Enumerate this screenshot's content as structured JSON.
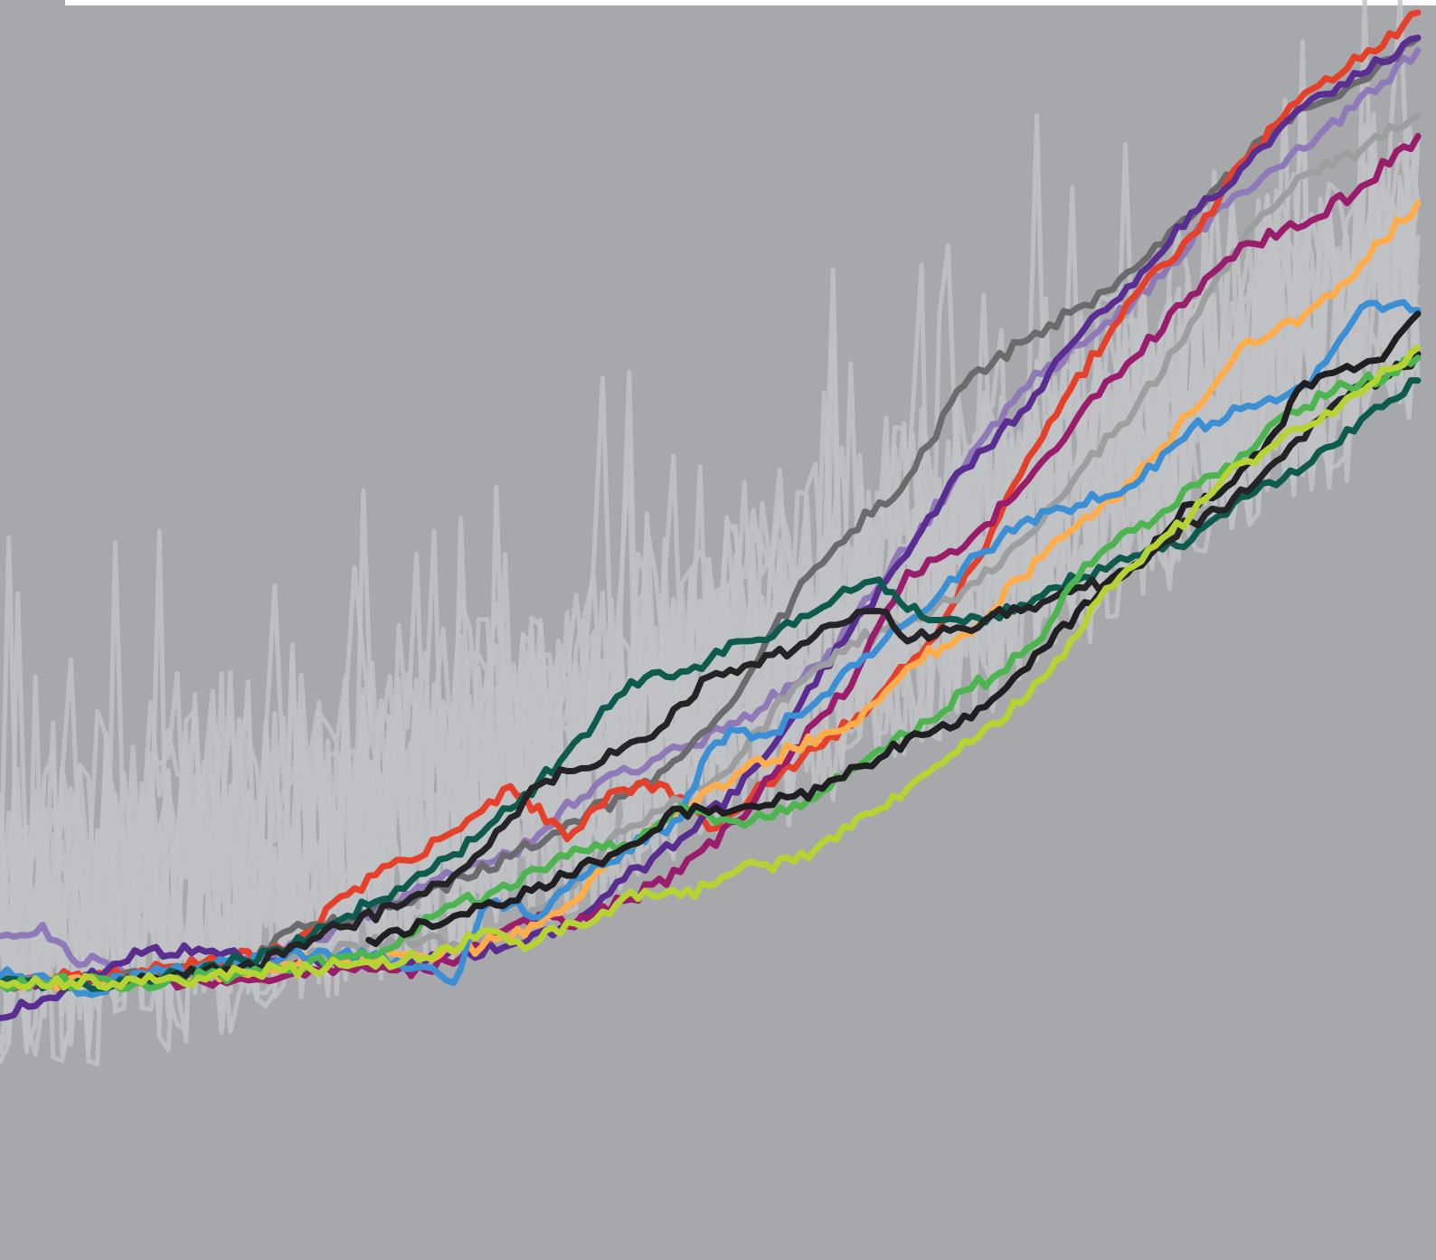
{
  "chart_data": {
    "type": "line",
    "title": "",
    "xlabel": "",
    "ylabel": "",
    "xlim": [
      0,
      100
    ],
    "ylim": [
      0,
      100
    ],
    "grid": false,
    "legend": "none",
    "background": "#a7a8ab",
    "noise": {
      "color": "#bfc2c6",
      "count": 14,
      "points": 161,
      "baseline": {
        "x": [
          0,
          10,
          20,
          30,
          40,
          50,
          60,
          70,
          80,
          90,
          100
        ],
        "y": [
          28,
          30,
          33,
          37,
          41,
          46,
          51,
          58,
          65,
          72,
          80
        ]
      },
      "spread": 22,
      "seed": 1337
    },
    "series": [
      {
        "color": "#8f79b8",
        "x": [
          0,
          3,
          5,
          7,
          10,
          15,
          20,
          25,
          32,
          36,
          42,
          48,
          52,
          58,
          62,
          68,
          72,
          76,
          82,
          86,
          92,
          100
        ],
        "y": [
          25.7,
          26.6,
          24.0,
          23.8,
          22.6,
          23.1,
          24.5,
          26.9,
          30.5,
          32.2,
          37.7,
          40.6,
          42.6,
          47.3,
          53.5,
          62.9,
          69.0,
          72.6,
          78.1,
          83.6,
          88.2,
          96.0
        ]
      },
      {
        "color": "#6b6b6d",
        "x": [
          0,
          8,
          12,
          18,
          20,
          25,
          30,
          36,
          40,
          44,
          47,
          49,
          52,
          56,
          60,
          64,
          68,
          72,
          78,
          82,
          86,
          90,
          94,
          97,
          100
        ],
        "y": [
          22.0,
          22.2,
          22.8,
          23.8,
          26.0,
          27.1,
          29.1,
          32.0,
          34.7,
          36.8,
          39.0,
          41.3,
          44.8,
          52.6,
          57.8,
          62.0,
          69.4,
          72.8,
          76.9,
          80.6,
          85.3,
          90.0,
          92.2,
          94.5,
          97.0
        ]
      },
      {
        "color": "#e5402a",
        "x": [
          0,
          10,
          20,
          25,
          32,
          36,
          40,
          43,
          47,
          50,
          54,
          58,
          62,
          66,
          70,
          74,
          80,
          84,
          88,
          92,
          96,
          100
        ],
        "y": [
          22.0,
          23.0,
          24.5,
          29.5,
          34.0,
          37.6,
          33.4,
          37.1,
          37.6,
          34.2,
          37.8,
          40.8,
          44.8,
          49.5,
          58.0,
          66.5,
          76.5,
          81.3,
          87.5,
          92.6,
          95.3,
          99.0
        ]
      },
      {
        "color": "#5a2e91",
        "x": [
          0,
          3,
          6,
          10,
          14,
          20,
          25,
          30,
          33,
          36,
          40,
          44,
          48,
          52,
          56,
          60,
          64,
          68,
          72,
          76,
          80,
          84,
          88,
          92,
          96,
          100
        ],
        "y": [
          19.2,
          20.7,
          22.3,
          24.3,
          24.7,
          23.5,
          23.8,
          23.7,
          24.4,
          25.0,
          26.6,
          30.2,
          33.4,
          37.1,
          43.2,
          50.0,
          56.0,
          62.8,
          67.3,
          73.2,
          77.4,
          83.1,
          87.1,
          91.6,
          94.1,
          97.0
        ]
      },
      {
        "color": "#9d9e9f",
        "x": [
          0,
          10,
          20,
          25,
          30,
          33,
          36,
          40,
          44,
          48,
          52,
          56,
          60,
          64,
          68,
          72,
          76,
          80,
          84,
          88,
          92,
          96,
          100
        ],
        "y": [
          22.0,
          22.0,
          23.5,
          25.0,
          25.5,
          25.0,
          26.1,
          29.6,
          34.0,
          36.4,
          39.8,
          45.5,
          49.0,
          50.5,
          53.2,
          57.0,
          62.4,
          67.4,
          74.4,
          81.7,
          86.1,
          88.1,
          90.8
        ]
      },
      {
        "color": "#9a1d6b",
        "x": [
          0,
          10,
          20,
          25,
          30,
          34,
          38,
          40,
          42,
          44,
          48,
          52,
          56,
          60,
          64,
          68,
          72,
          76,
          80,
          84,
          88,
          92,
          96,
          100
        ],
        "y": [
          22.0,
          22.0,
          22.5,
          23.0,
          23.0,
          24.8,
          27.4,
          26.5,
          27.5,
          28.5,
          30.8,
          34.8,
          40.6,
          45.5,
          54.6,
          56.6,
          61.3,
          66.9,
          71.6,
          76.6,
          80.7,
          82.1,
          85.2,
          89.2
        ]
      },
      {
        "color": "#ffad4a",
        "x": [
          0,
          10,
          20,
          24,
          28,
          32,
          36,
          40,
          44,
          48,
          52,
          56,
          60,
          64,
          68,
          72,
          76,
          80,
          84,
          88,
          92,
          96,
          100
        ],
        "y": [
          22.0,
          22.0,
          23.5,
          24.0,
          24.2,
          24.4,
          25.6,
          28.1,
          32.5,
          35.6,
          38.6,
          40.6,
          42.5,
          47.0,
          49.7,
          54.1,
          58.3,
          62.0,
          67.2,
          73.0,
          75.0,
          79.0,
          83.9
        ]
      },
      {
        "color": "#3b8fd4",
        "x": [
          0,
          3,
          6,
          10,
          14,
          20,
          24,
          28,
          32,
          34,
          36,
          38,
          40,
          44,
          48,
          50,
          52,
          54,
          56,
          58,
          60,
          64,
          68,
          72,
          76,
          80,
          84,
          88,
          92,
          96,
          98,
          100
        ],
        "y": [
          22.5,
          22.6,
          21.2,
          22.8,
          23.2,
          24.0,
          24.2,
          23.8,
          22.0,
          27.8,
          28.2,
          27.2,
          29.5,
          32.5,
          35.0,
          40.5,
          42.0,
          41.6,
          43.2,
          44.8,
          47.2,
          50.6,
          55.0,
          58.5,
          59.9,
          61.5,
          66.0,
          67.8,
          69.4,
          75.6,
          75.7,
          75.4
        ]
      },
      {
        "color": "#0d5a4e",
        "x": [
          0,
          10,
          20,
          24,
          28,
          32,
          36,
          38,
          40,
          42,
          44,
          46,
          48,
          50,
          52,
          54,
          56,
          58,
          60,
          62,
          64,
          66,
          68,
          70,
          72,
          74,
          76,
          78,
          80,
          82,
          84,
          86,
          88,
          90,
          92,
          94,
          96,
          98,
          100
        ],
        "y": [
          22.0,
          22.0,
          24.5,
          27.0,
          29.5,
          32.2,
          35.8,
          38.0,
          40.3,
          42.7,
          45.0,
          46.6,
          46.7,
          47.6,
          49.1,
          49.2,
          50.4,
          51.8,
          53.1,
          54.0,
          51.6,
          50.8,
          50.6,
          51.3,
          52.0,
          53.3,
          54.0,
          54.8,
          55.9,
          56.4,
          57.1,
          59.1,
          60.6,
          61.5,
          62.9,
          64.6,
          66.7,
          68.2,
          69.8
        ]
      },
      {
        "color": "#242325",
        "x": [
          8,
          12,
          16,
          20,
          24,
          28,
          32,
          34,
          36,
          38,
          40,
          42,
          44,
          46,
          48,
          50,
          52,
          54,
          56,
          58,
          60,
          62,
          64,
          66,
          68,
          70,
          72,
          74,
          76,
          78,
          80,
          82,
          84,
          86,
          88,
          90,
          92,
          94,
          96,
          98,
          100
        ],
        "y": [
          22.0,
          22.5,
          23.1,
          24.2,
          26.4,
          28.0,
          30.5,
          32.4,
          35.1,
          37.7,
          38.8,
          39.2,
          40.7,
          41.5,
          44.1,
          46.3,
          46.6,
          48.0,
          48.4,
          50.2,
          50.8,
          51.5,
          49.1,
          49.6,
          50.1,
          51.2,
          51.5,
          52.4,
          53.4,
          53.7,
          55.2,
          56.9,
          58.6,
          59.5,
          61.0,
          63.4,
          65.2,
          67.8,
          69.5,
          70.2,
          71.9
        ]
      },
      {
        "color": "#4db550",
        "x": [
          0,
          10,
          20,
          24,
          28,
          30,
          32,
          36,
          38,
          40,
          42,
          44,
          46,
          48,
          50,
          52,
          54,
          56,
          58,
          60,
          62,
          64,
          66,
          68,
          70,
          72,
          74,
          76,
          78,
          80,
          82,
          84,
          86,
          88,
          90,
          92,
          94,
          96,
          98,
          100
        ],
        "y": [
          22.0,
          22.0,
          23.0,
          24.0,
          25.0,
          27.2,
          28.2,
          29.5,
          31.0,
          32.0,
          33.0,
          33.0,
          34.1,
          36.0,
          35.3,
          34.8,
          35.1,
          36.2,
          37.2,
          38.9,
          40.5,
          41.6,
          42.9,
          45.2,
          46.2,
          48.0,
          50.5,
          54.1,
          56.5,
          57.9,
          59.4,
          61.5,
          62.3,
          64.0,
          66.6,
          67.7,
          68.9,
          69.6,
          70.4,
          71.6
        ]
      },
      {
        "color": "#1f1e20",
        "x": [
          26,
          30,
          34,
          36,
          38,
          40,
          42,
          44,
          46,
          48,
          50,
          52,
          54,
          56,
          58,
          60,
          62,
          64,
          66,
          68,
          70,
          72,
          74,
          76,
          78,
          80,
          82,
          84,
          86,
          88,
          90,
          92,
          94,
          96,
          98,
          100
        ],
        "y": [
          25.4,
          26.8,
          28.1,
          28.5,
          29.8,
          30.5,
          31.6,
          32.7,
          34.0,
          35.8,
          35.5,
          35.8,
          36.1,
          36.8,
          37.4,
          39.1,
          39.8,
          41.4,
          42.1,
          43.2,
          44.5,
          46.7,
          48.8,
          51.5,
          53.7,
          55.0,
          57.4,
          60.0,
          60.8,
          63.2,
          65.8,
          69.6,
          70.4,
          71.0,
          72.3,
          75.1
        ]
      },
      {
        "color": "#b5d333",
        "x": [
          0,
          10,
          20,
          25,
          30,
          32,
          34,
          36,
          38,
          40,
          42,
          44,
          46,
          48,
          50,
          52,
          54,
          56,
          58,
          60,
          62,
          64,
          66,
          68,
          70,
          72,
          74,
          76,
          78,
          80,
          82,
          84,
          86,
          88,
          90,
          92,
          94,
          96,
          98,
          100
        ],
        "y": [
          22.0,
          22.0,
          23.0,
          23.5,
          24.0,
          24.5,
          26.1,
          25.2,
          25.3,
          26.8,
          27.0,
          28.8,
          28.9,
          28.9,
          29.7,
          30.9,
          31.4,
          31.6,
          33.1,
          34.3,
          35.8,
          37.4,
          39.2,
          41.2,
          42.6,
          44.2,
          46.6,
          49.6,
          53.3,
          55.1,
          57.3,
          59.1,
          61.6,
          63.4,
          64.8,
          66.0,
          67.1,
          68.8,
          70.7,
          72.4
        ]
      }
    ]
  }
}
